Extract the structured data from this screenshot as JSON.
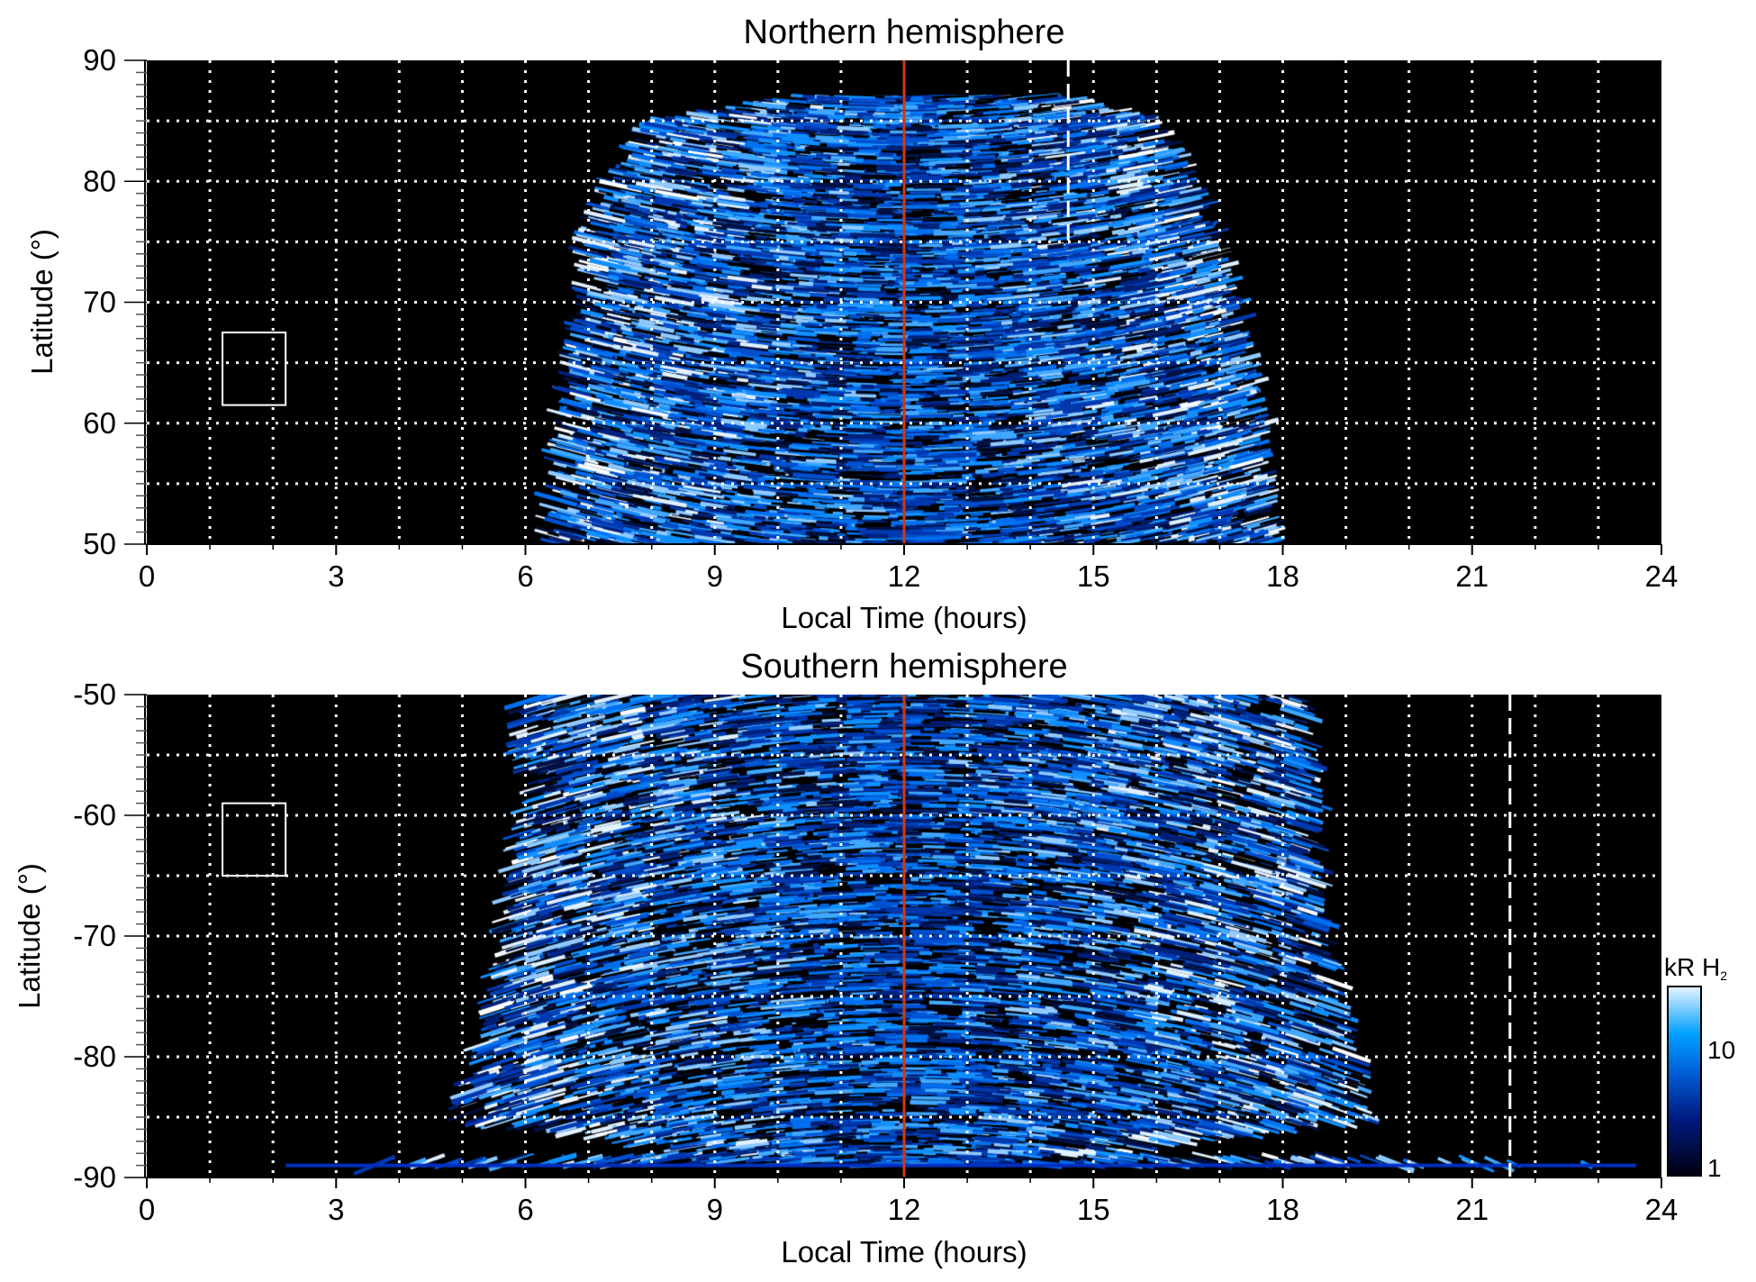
{
  "chart_data": [
    {
      "type": "heatmap",
      "title": "Northern hemisphere",
      "xlabel": "Local Time (hours)",
      "ylabel": "Latitude (°)",
      "xlim": [
        0,
        24
      ],
      "ylim": [
        50,
        90
      ],
      "xticks": [
        "0",
        "3",
        "6",
        "9",
        "12",
        "15",
        "18",
        "21",
        "24"
      ],
      "yticks": [
        "50",
        "60",
        "70",
        "80",
        "90"
      ],
      "grid": true,
      "grid_x_step": 1,
      "grid_y_step": 5,
      "emission_extent": [
        [
          50,
          6.4,
          17.8
        ],
        [
          60,
          6.6,
          17.6
        ],
        [
          70,
          6.9,
          17.2
        ],
        [
          75,
          7.0,
          16.9
        ],
        [
          80,
          7.4,
          16.5
        ],
        [
          85,
          8.1,
          15.9
        ],
        [
          87,
          10.3,
          14.4
        ]
      ],
      "annotations": {
        "noon_line": {
          "local_time": 12,
          "color": "#d4380d"
        },
        "dashed_line": {
          "local_time": 14.6,
          "color": "#ffffff",
          "lat_range": [
            75,
            90
          ]
        },
        "box": {
          "local_time": [
            1.2,
            2.2
          ],
          "latitude": [
            61.5,
            67.5
          ],
          "color": "#ffffff"
        }
      }
    },
    {
      "type": "heatmap",
      "title": "Southern hemisphere",
      "xlabel": "Local Time (hours)",
      "ylabel": "Latitude (°)",
      "xlim": [
        0,
        24
      ],
      "ylim": [
        -90,
        -50
      ],
      "xticks": [
        "0",
        "3",
        "6",
        "9",
        "12",
        "15",
        "18",
        "21",
        "24"
      ],
      "yticks": [
        "-90",
        "-80",
        "-70",
        "-60",
        "-50"
      ],
      "grid": true,
      "grid_x_step": 1,
      "grid_y_step": 5,
      "emission_extent": [
        [
          -50,
          6.0,
          18.3
        ],
        [
          -60,
          5.9,
          18.5
        ],
        [
          -70,
          5.7,
          18.6
        ],
        [
          -80,
          5.2,
          19.1
        ],
        [
          -85,
          4.9,
          19.5
        ],
        [
          -88,
          9.0,
          15.0
        ],
        [
          -89,
          2.2,
          23.6
        ]
      ],
      "annotations": {
        "noon_line": {
          "local_time": 12,
          "color": "#d4380d"
        },
        "dashed_line": {
          "local_time": 21.6,
          "color": "#ffffff",
          "lat_range": [
            -90,
            -50
          ]
        },
        "box": {
          "local_time": [
            1.2,
            2.2
          ],
          "latitude": [
            -65,
            -59
          ],
          "color": "#ffffff"
        }
      }
    }
  ],
  "colorbar": {
    "label": "kR H",
    "label_sub": "2",
    "scale": "log",
    "range": [
      1,
      30
    ],
    "ticks": [
      "1",
      "10"
    ],
    "colors": [
      "#000010",
      "#001a80",
      "#0060d8",
      "#00a0ff",
      "#e8f4ff"
    ]
  }
}
